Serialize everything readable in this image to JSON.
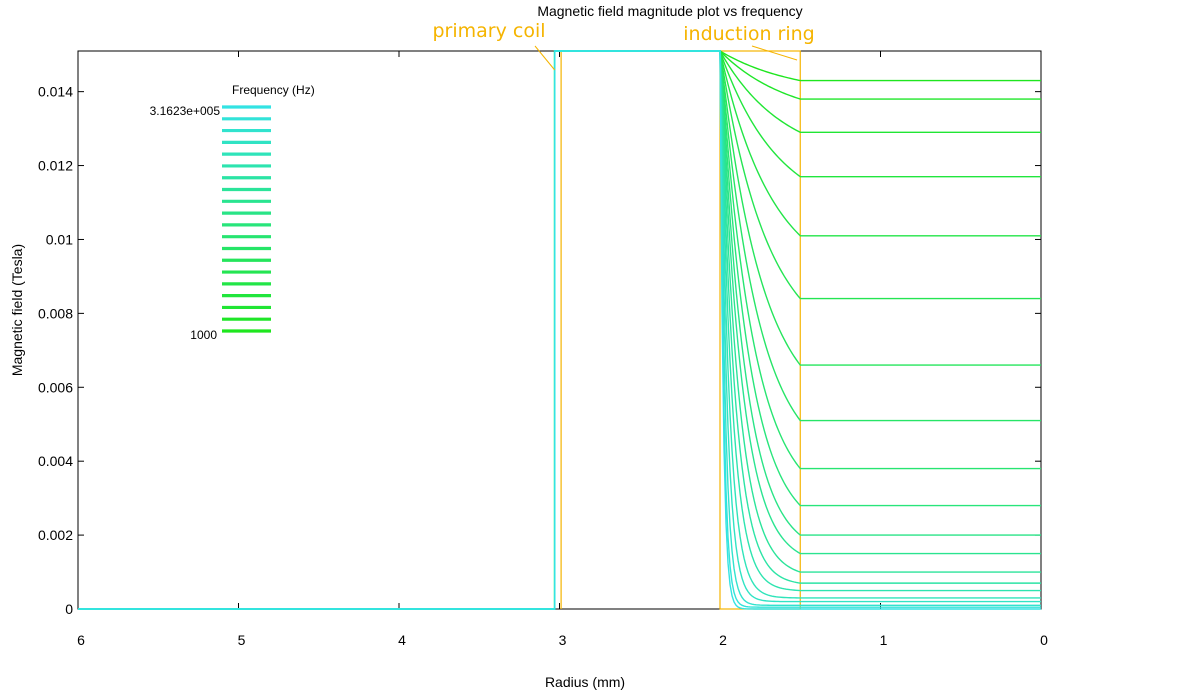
{
  "chart_data": {
    "type": "line",
    "title": "Magnetic field magnitude plot vs frequency",
    "xlabel": "Radius (mm)",
    "ylabel": "Magnetic field (Tesla)",
    "xlim": [
      6,
      0
    ],
    "ylim": [
      0,
      0.0151
    ],
    "x_reversed": true,
    "x_ticks": [
      6,
      5,
      4,
      3,
      2,
      1,
      0
    ],
    "x_tick_labels": [
      "6",
      "5",
      "4",
      "3",
      "2",
      "1",
      "0"
    ],
    "y_ticks": [
      0,
      0.002,
      0.004,
      0.006,
      0.008,
      0.01,
      0.012,
      0.014
    ],
    "y_tick_labels": [
      "0",
      "0.002",
      "0.004",
      "0.006",
      "0.008",
      "0.01",
      "0.012",
      "0.014"
    ],
    "grid": false,
    "legend": {
      "title": "Frequency (Hz)",
      "placement": "top-left",
      "top_label": "3.1623e+005",
      "bottom_label": "1000",
      "color_high": "#33e3e3",
      "color_low": "#1ee61e"
    },
    "annotations": [
      {
        "text": "primary coil",
        "color": "#f5b400",
        "x_range": [
          3.03,
          2.99
        ],
        "points_to_x": 3.03
      },
      {
        "text": "induction ring",
        "color": "#f5b400",
        "x_range": [
          2.0,
          1.5
        ],
        "points_to_x": 1.52
      }
    ],
    "regions": {
      "coil_x": [
        3.03,
        2.99
      ],
      "ring_inner_x": 2.0,
      "ring_outer_x": 1.5,
      "field_in_coil": 0.0151
    },
    "series_count": 20,
    "freq_range_hz": [
      1000,
      316230
    ],
    "plateau_values": [
      0.0,
      5e-05,
      0.0001,
      0.0002,
      0.0003,
      0.0005,
      0.0007,
      0.001,
      0.0015,
      0.002,
      0.0028,
      0.0038,
      0.0051,
      0.0066,
      0.0084,
      0.0101,
      0.0117,
      0.0129,
      0.0138,
      0.0143
    ],
    "source_value": 0.0151
  }
}
